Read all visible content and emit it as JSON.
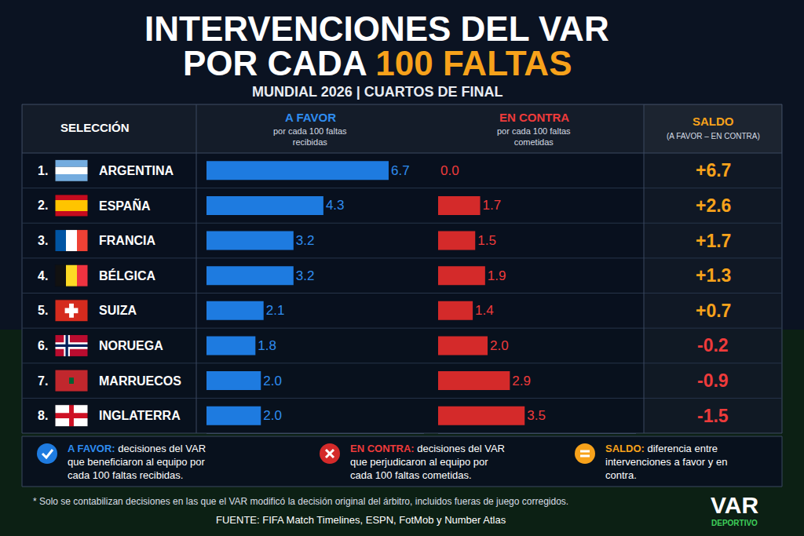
{
  "chart_data": {
    "type": "bar",
    "orientation": "horizontal",
    "title": "INTERVENCIONES DEL VAR POR CADA 100 FALTAS",
    "subtitle": "MUNDIAL 2026 | CUARTOS DE FINAL",
    "category_header": "SELECCIÓN",
    "categories": [
      "1. ARGENTINA",
      "2. ESPAÑA",
      "3. FRANCIA",
      "4. BÉLGICA",
      "5. SUIZA",
      "6. NORUEGA",
      "7. MARRUECOS",
      "8. INGLATERRA"
    ],
    "series": [
      {
        "name": "A FAVOR",
        "description": "por cada 100 faltas recibidas",
        "color": "#1e7be0",
        "values": [
          6.7,
          4.3,
          3.2,
          3.2,
          2.1,
          1.8,
          2.0,
          2.0
        ],
        "value_labels": [
          "6.7",
          "4.3",
          "3.2",
          "3.2",
          "2.1",
          "1.8",
          "2.0",
          "2.0"
        ]
      },
      {
        "name": "EN CONTRA",
        "description": "por cada 100 faltas cometidas",
        "color": "#d42a2a",
        "values": [
          0.0,
          1.7,
          1.5,
          1.9,
          1.4,
          2.0,
          2.9,
          3.5
        ],
        "value_labels": [
          "0.0",
          "1.7",
          "1.5",
          "1.9",
          "1.4",
          "2.0",
          "2.9",
          "3.5"
        ]
      }
    ],
    "balance": {
      "name": "SALDO",
      "description": "(A FAVOR – EN CONTRA)",
      "values": [
        6.7,
        2.6,
        1.7,
        1.3,
        0.7,
        -0.2,
        -0.9,
        -1.5
      ],
      "value_labels": [
        "+6.7",
        "+2.6",
        "+1.7",
        "+1.3",
        "+0.7",
        "-0.2",
        "-0.9",
        "-1.5"
      ]
    },
    "xlim": [
      0,
      8
    ],
    "grid": false,
    "data_labels": true,
    "key": [
      {
        "term": "A FAVOR:",
        "text": "decisiones del VAR que beneficiaron al equipo por cada 100 faltas recibidas."
      },
      {
        "term": "EN CONTRA:",
        "text": "decisiones del VAR que perjudicaron al equipo por cada 100 faltas cometidas."
      },
      {
        "term": "SALDO:",
        "text": "diferencia entre intervenciones a favor y en contra."
      }
    ],
    "footnote": "* Solo se contabilizan decisiones en las que el VAR modificó la decisión original del árbitro, incluidos fueras de juego corregidos.",
    "source": "FUENTE: FIFA Match Timelines, ESPN, FotMob y Number Atlas",
    "logo": [
      "VAR",
      "DEPORTIVO"
    ]
  }
}
